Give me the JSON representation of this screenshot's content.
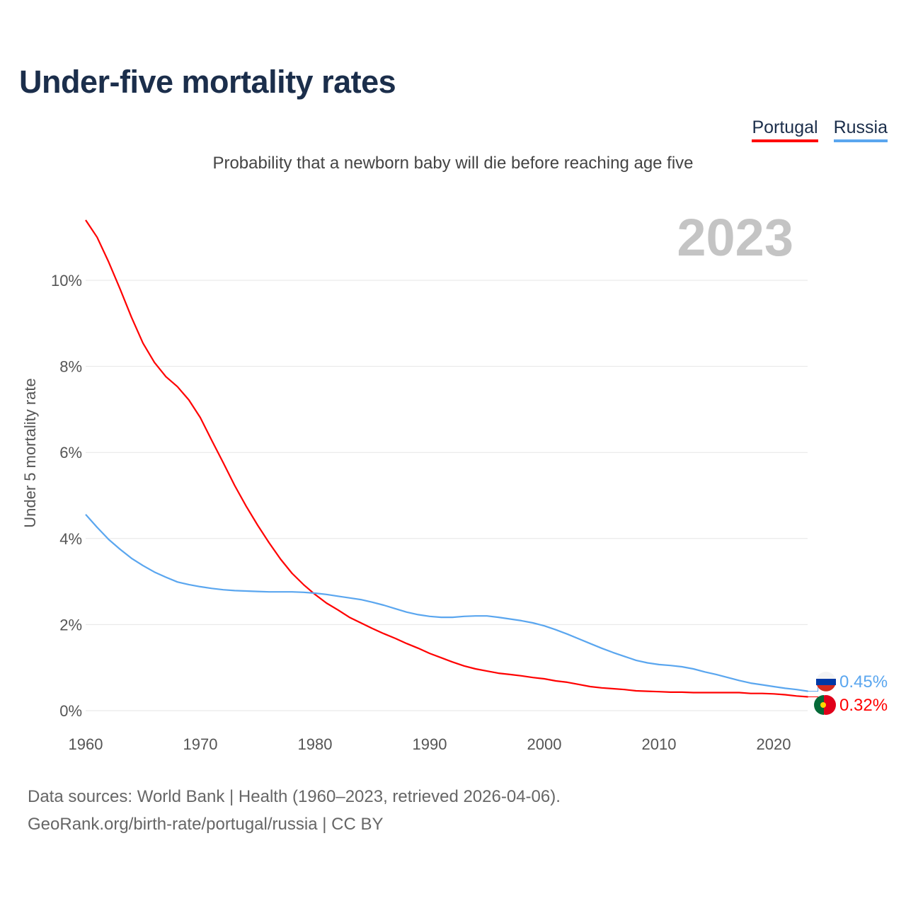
{
  "title": "Under-five mortality rates",
  "subtitle": "Probability that a newborn baby will die before reaching age five",
  "legend": [
    {
      "label": "Portugal",
      "color": "#ff0000"
    },
    {
      "label": "Russia",
      "color": "#5aa6ef"
    }
  ],
  "source_line1": "Data sources: World Bank | Health (1960–2023, retrieved 2026-04-06).",
  "source_line2": "GeoRank.org/birth-rate/portugal/russia | CC BY",
  "chart_data": {
    "type": "line",
    "title": "Under-five mortality rates",
    "ylabel": "Under 5 mortality rate",
    "xlabel": "",
    "year_label": "2023",
    "xlim": [
      1960,
      2023
    ],
    "ylim": [
      0,
      11.5
    ],
    "x_ticks": [
      1960,
      1970,
      1980,
      1990,
      2000,
      2010,
      2020
    ],
    "y_ticks": [
      0,
      2,
      4,
      6,
      8,
      10
    ],
    "y_tick_labels": [
      "0%",
      "2%",
      "4%",
      "6%",
      "8%",
      "10%"
    ],
    "grid": true,
    "x": [
      1960,
      1961,
      1962,
      1963,
      1964,
      1965,
      1966,
      1967,
      1968,
      1969,
      1970,
      1971,
      1972,
      1973,
      1974,
      1975,
      1976,
      1977,
      1978,
      1979,
      1980,
      1981,
      1982,
      1983,
      1984,
      1985,
      1986,
      1987,
      1988,
      1989,
      1990,
      1991,
      1992,
      1993,
      1994,
      1995,
      1996,
      1997,
      1998,
      1999,
      2000,
      2001,
      2002,
      2003,
      2004,
      2005,
      2006,
      2007,
      2008,
      2009,
      2010,
      2011,
      2012,
      2013,
      2014,
      2015,
      2016,
      2017,
      2018,
      2019,
      2020,
      2021,
      2022,
      2023
    ],
    "series": [
      {
        "name": "Portugal",
        "color": "#ff0000",
        "end_label": "0.32%",
        "values": [
          11.4,
          11.0,
          10.43,
          9.8,
          9.14,
          8.54,
          8.09,
          7.76,
          7.53,
          7.22,
          6.81,
          6.28,
          5.76,
          5.23,
          4.75,
          4.31,
          3.9,
          3.52,
          3.19,
          2.93,
          2.7,
          2.5,
          2.34,
          2.17,
          2.04,
          1.91,
          1.79,
          1.68,
          1.56,
          1.45,
          1.33,
          1.23,
          1.13,
          1.04,
          0.97,
          0.92,
          0.87,
          0.84,
          0.81,
          0.77,
          0.74,
          0.69,
          0.66,
          0.61,
          0.56,
          0.53,
          0.51,
          0.49,
          0.46,
          0.45,
          0.44,
          0.43,
          0.43,
          0.42,
          0.42,
          0.42,
          0.42,
          0.42,
          0.4,
          0.4,
          0.39,
          0.37,
          0.34,
          0.32
        ]
      },
      {
        "name": "Russia",
        "color": "#5aa6ef",
        "end_label": "0.45%",
        "values": [
          4.56,
          4.26,
          3.98,
          3.75,
          3.54,
          3.37,
          3.22,
          3.1,
          2.99,
          2.93,
          2.88,
          2.84,
          2.81,
          2.79,
          2.78,
          2.77,
          2.76,
          2.76,
          2.76,
          2.75,
          2.73,
          2.7,
          2.66,
          2.62,
          2.58,
          2.52,
          2.45,
          2.37,
          2.29,
          2.23,
          2.19,
          2.17,
          2.17,
          2.19,
          2.2,
          2.2,
          2.17,
          2.13,
          2.09,
          2.04,
          1.97,
          1.88,
          1.78,
          1.67,
          1.56,
          1.45,
          1.35,
          1.26,
          1.17,
          1.11,
          1.07,
          1.05,
          1.02,
          0.97,
          0.9,
          0.84,
          0.77,
          0.7,
          0.64,
          0.6,
          0.56,
          0.52,
          0.49,
          0.45
        ]
      }
    ]
  }
}
